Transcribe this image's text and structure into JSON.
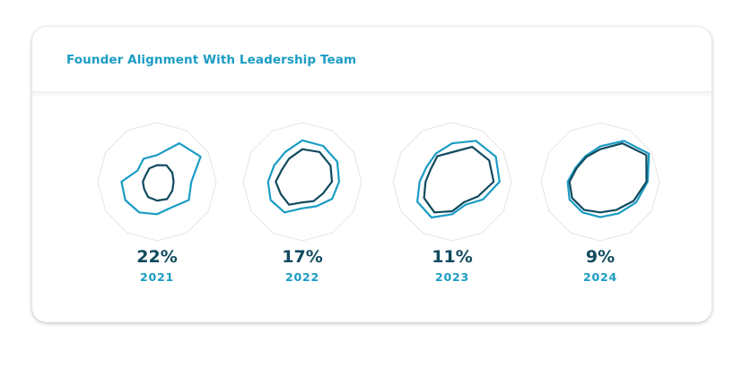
{
  "title": "Founder Alignment With Leadership Team",
  "colors": {
    "outer_series": "#1a9cc4",
    "inner_series": "#0f4a5e",
    "grid": "#e4e4e4",
    "percent_text": "#0f4a5e",
    "year_text": "#1a9cc4"
  },
  "chart_data": [
    {
      "type": "radar",
      "axes_count": 12,
      "range": [
        0,
        1
      ],
      "grid": true,
      "label": "22%",
      "year": "2021",
      "series": [
        {
          "values": [
            0.45,
            0.75,
            0.85,
            0.58,
            0.62,
            0.5,
            0.55,
            0.6,
            0.62,
            0.6,
            0.38,
            0.45
          ]
        },
        {
          "values": [
            0.28,
            0.32,
            0.3,
            0.28,
            0.3,
            0.34,
            0.32,
            0.3,
            0.25,
            0.24,
            0.22,
            0.26
          ]
        }
      ]
    },
    {
      "type": "radar",
      "axes_count": 12,
      "range": [
        0,
        1
      ],
      "grid": true,
      "label": "17%",
      "year": "2022",
      "series": [
        {
          "values": [
            0.7,
            0.7,
            0.68,
            0.62,
            0.58,
            0.48,
            0.45,
            0.6,
            0.62,
            0.58,
            0.55,
            0.58
          ]
        },
        {
          "values": [
            0.55,
            0.58,
            0.55,
            0.5,
            0.4,
            0.38,
            0.35,
            0.45,
            0.42,
            0.45,
            0.4,
            0.45
          ]
        }
      ]
    },
    {
      "type": "radar",
      "axes_count": 12,
      "range": [
        0,
        1
      ],
      "grid": true,
      "label": "11%",
      "year": "2023",
      "series": [
        {
          "values": [
            0.65,
            0.8,
            0.85,
            0.8,
            0.6,
            0.45,
            0.55,
            0.7,
            0.68,
            0.55,
            0.5,
            0.55
          ]
        },
        {
          "values": [
            0.5,
            0.68,
            0.72,
            0.7,
            0.5,
            0.4,
            0.5,
            0.6,
            0.55,
            0.45,
            0.42,
            0.5
          ]
        }
      ]
    },
    {
      "type": "radar",
      "axes_count": 12,
      "range": [
        0,
        1
      ],
      "grid": true,
      "label": "9%",
      "year": "2024",
      "series": [
        {
          "values": [
            0.6,
            0.8,
            0.95,
            0.8,
            0.7,
            0.62,
            0.6,
            0.6,
            0.6,
            0.55,
            0.48,
            0.5
          ]
        },
        {
          "values": [
            0.55,
            0.75,
            0.9,
            0.78,
            0.65,
            0.55,
            0.52,
            0.55,
            0.55,
            0.52,
            0.46,
            0.48
          ]
        }
      ]
    }
  ]
}
